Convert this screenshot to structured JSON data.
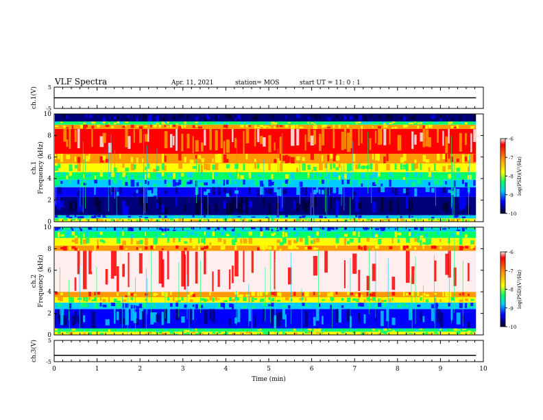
{
  "header": {
    "title": "VLF Spectra",
    "date": "Apr. 11, 2021",
    "station": "station= MOS",
    "start": "start UT = 11: 0 : 1"
  },
  "colorscale": [
    "#000033",
    "#00007a",
    "#0000ff",
    "#00ccff",
    "#00ff66",
    "#ffff00",
    "#ff9900",
    "#ff0000",
    "#ffeeee"
  ],
  "chart_data": [
    {
      "type": "line",
      "name": "ch1-voltage",
      "ylabel": "ch.1(V)",
      "ylim": [
        -5,
        5
      ],
      "ytick_labels": [
        "5",
        "-5"
      ],
      "x": [
        0,
        9.83
      ],
      "y": [
        0,
        0
      ]
    },
    {
      "type": "heatmap",
      "name": "ch1-spectrogram",
      "ylabel": "ch.1\nFrequency (kHz)",
      "ylim": [
        0,
        10
      ],
      "xlim": [
        0,
        10
      ],
      "ytick_labels": [
        "0",
        "2",
        "4",
        "6",
        "8",
        "10"
      ],
      "colorbar": {
        "label": "log(PSD)(V²/Hz)",
        "ticks": [
          "-6",
          "-7",
          "-8",
          "-9",
          "-10"
        ],
        "range": [
          -10,
          -6
        ]
      },
      "data_end_min": 9.83,
      "bands": [
        {
          "f0": 0.0,
          "f1": 0.3,
          "level": 5
        },
        {
          "f0": 0.3,
          "f1": 0.6,
          "level": 3
        },
        {
          "f0": 0.6,
          "f1": 2.3,
          "level": 1
        },
        {
          "f0": 2.3,
          "f1": 3.2,
          "level": 2
        },
        {
          "f0": 3.2,
          "f1": 3.9,
          "level": 3
        },
        {
          "f0": 3.9,
          "f1": 4.6,
          "level": 4
        },
        {
          "f0": 4.6,
          "f1": 5.4,
          "level": 5
        },
        {
          "f0": 5.4,
          "f1": 6.3,
          "level": 6
        },
        {
          "f0": 6.3,
          "f1": 8.6,
          "level": 7
        },
        {
          "f0": 8.6,
          "f1": 9.0,
          "level": 6
        },
        {
          "f0": 9.0,
          "f1": 9.3,
          "level": 4
        },
        {
          "f0": 9.3,
          "f1": 10.0,
          "level": 1
        }
      ]
    },
    {
      "type": "heatmap",
      "name": "ch2-spectrogram",
      "ylabel": "ch.2\nFrequency (kHz)",
      "ylim": [
        0,
        10
      ],
      "xlim": [
        0,
        10
      ],
      "ytick_labels": [
        "0",
        "2",
        "4",
        "6",
        "8",
        "10"
      ],
      "colorbar": {
        "label": "log(PSD)(V²/Hz)",
        "ticks": [
          "-6",
          "-7",
          "-8",
          "-9",
          "-10"
        ],
        "range": [
          -10,
          -6
        ]
      },
      "data_end_min": 9.83,
      "bands": [
        {
          "f0": 0.0,
          "f1": 0.3,
          "level": 5
        },
        {
          "f0": 0.3,
          "f1": 0.6,
          "level": 4
        },
        {
          "f0": 0.6,
          "f1": 2.4,
          "level": 2
        },
        {
          "f0": 2.4,
          "f1": 3.0,
          "level": 3
        },
        {
          "f0": 3.0,
          "f1": 3.5,
          "level": 5
        },
        {
          "f0": 3.5,
          "f1": 4.0,
          "level": 6
        },
        {
          "f0": 4.0,
          "f1": 7.8,
          "level": 8
        },
        {
          "f0": 7.8,
          "f1": 8.3,
          "level": 6
        },
        {
          "f0": 8.3,
          "f1": 9.0,
          "level": 5
        },
        {
          "f0": 9.0,
          "f1": 9.6,
          "level": 4
        },
        {
          "f0": 9.6,
          "f1": 10.0,
          "level": 3
        }
      ]
    },
    {
      "type": "line",
      "name": "ch3-voltage",
      "ylabel": "ch.3(V)",
      "ylim": [
        -5,
        5
      ],
      "ytick_labels": [
        "5",
        "-5"
      ],
      "x": [
        0,
        9.83
      ],
      "y": [
        -2,
        -2
      ]
    }
  ],
  "xaxis": {
    "label": "Time (min)",
    "ticks": [
      "0",
      "1",
      "2",
      "3",
      "4",
      "5",
      "6",
      "7",
      "8",
      "9",
      "10"
    ]
  }
}
